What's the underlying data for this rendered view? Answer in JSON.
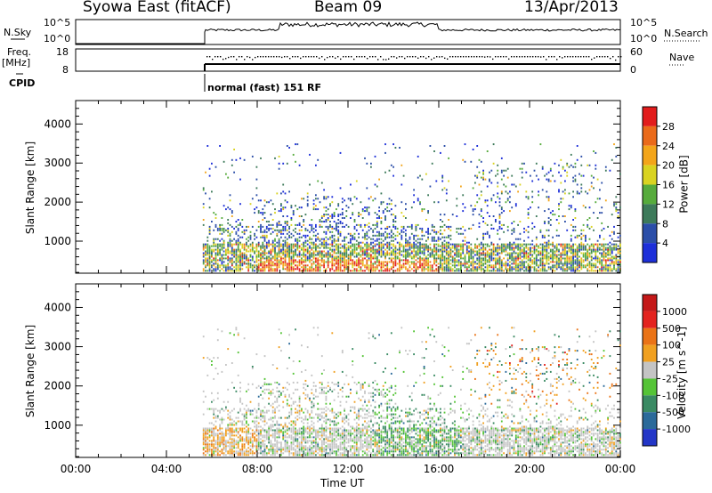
{
  "header": {
    "station": "Syowa East (fitACF)",
    "beam": "Beam 09",
    "date": "13/Apr/2013"
  },
  "params": {
    "nsky_label": "N.Sky",
    "nsky_ticks": [
      "10^5",
      "10^0"
    ],
    "nsearch_label": "N.Search",
    "freq_label": "Freq.",
    "freq_unit": "[MHz]",
    "freq_ticks": [
      "18",
      "8"
    ],
    "nave_label": "Nave",
    "nave_ticks": [
      "60",
      "0"
    ],
    "cpid_label": "CPID",
    "cpid_value": "normal (fast) 151 RF"
  },
  "colors": {
    "power": [
      "#1d2fd9",
      "#2b4ea8",
      "#3d7a5a",
      "#56ab3c",
      "#d9d321",
      "#f3a51a",
      "#ea6a1a",
      "#e21c1c"
    ],
    "velocity": [
      "#2336c7",
      "#2b6a9a",
      "#3a8a63",
      "#55c437",
      "#c4c4c4",
      "#f0a020",
      "#ea7316",
      "#e3231f",
      "#c41818"
    ]
  },
  "chart_data": [
    {
      "type": "heatmap",
      "name": "power",
      "xlabel": "Time UT",
      "ylabel": "Slant Range [km]",
      "x_ticks": [
        "00:00",
        "04:00",
        "08:00",
        "12:00",
        "16:00",
        "20:00",
        "00:00"
      ],
      "y_ticks": [
        "1000",
        "2000",
        "3000",
        "4000"
      ],
      "xlim": [
        0,
        24
      ],
      "ylim": [
        180,
        4600
      ],
      "colorbar_label": "Power [dB]",
      "colorbar_ticks": [
        "4",
        "8",
        "12",
        "16",
        "20",
        "24",
        "28"
      ]
    },
    {
      "type": "heatmap",
      "name": "velocity",
      "xlabel": "Time UT",
      "ylabel": "Slant Range [km]",
      "x_ticks": [
        "00:00",
        "04:00",
        "08:00",
        "12:00",
        "16:00",
        "20:00",
        "00:00"
      ],
      "y_ticks": [
        "1000",
        "2000",
        "3000",
        "4000"
      ],
      "xlim": [
        0,
        24
      ],
      "ylim": [
        180,
        4600
      ],
      "colorbar_label": "Velocity [m s^-1]",
      "colorbar_ticks": [
        "1000",
        "500",
        "100",
        "25",
        "-25",
        "-100",
        "-500",
        "-1000"
      ]
    }
  ]
}
